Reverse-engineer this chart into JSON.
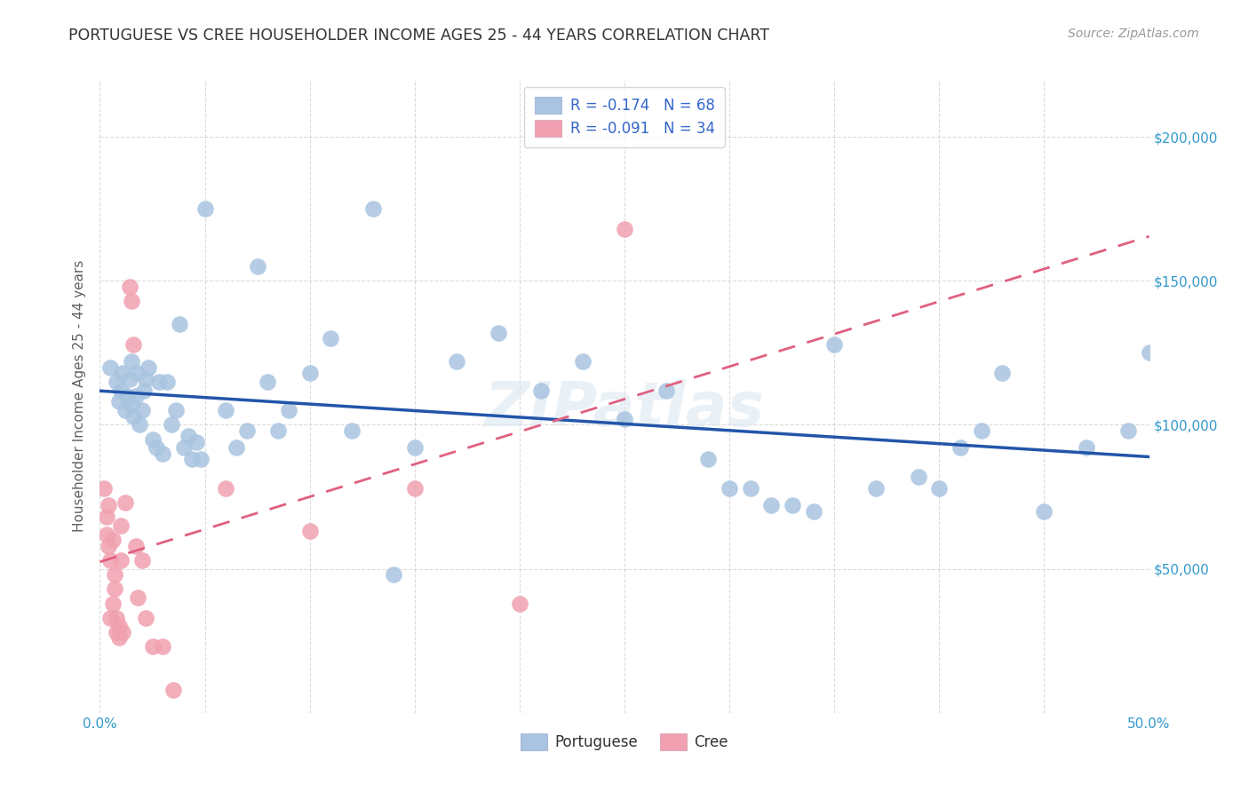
{
  "title": "PORTUGUESE VS CREE HOUSEHOLDER INCOME AGES 25 - 44 YEARS CORRELATION CHART",
  "source": "Source: ZipAtlas.com",
  "ylabel": "Householder Income Ages 25 - 44 years",
  "xlim": [
    0.0,
    0.5
  ],
  "ylim": [
    0,
    220000
  ],
  "yticks": [
    0,
    50000,
    100000,
    150000,
    200000
  ],
  "ytick_labels": [
    "",
    "$50,000",
    "$100,000",
    "$150,000",
    "$200,000"
  ],
  "xticks": [
    0.0,
    0.05,
    0.1,
    0.15,
    0.2,
    0.25,
    0.3,
    0.35,
    0.4,
    0.45,
    0.5
  ],
  "xtick_labels": [
    "0.0%",
    "",
    "",
    "",
    "",
    "",
    "",
    "",
    "",
    "",
    "50.0%"
  ],
  "legend_R_portuguese": "-0.174",
  "legend_N_portuguese": "68",
  "legend_R_cree": "-0.091",
  "legend_N_cree": "34",
  "color_portuguese": "#a8c4e0",
  "color_cree": "#f0a0b0",
  "line_color_portuguese": "#2255aa",
  "line_color_cree": "#e06080",
  "watermark": "ZIPatlas",
  "portuguese_x": [
    0.005,
    0.008,
    0.009,
    0.01,
    0.011,
    0.012,
    0.013,
    0.014,
    0.015,
    0.015,
    0.016,
    0.017,
    0.018,
    0.019,
    0.02,
    0.021,
    0.022,
    0.023,
    0.025,
    0.027,
    0.028,
    0.03,
    0.032,
    0.034,
    0.036,
    0.038,
    0.04,
    0.042,
    0.044,
    0.046,
    0.048,
    0.05,
    0.06,
    0.065,
    0.07,
    0.075,
    0.08,
    0.085,
    0.09,
    0.1,
    0.11,
    0.12,
    0.13,
    0.14,
    0.15,
    0.17,
    0.19,
    0.21,
    0.23,
    0.25,
    0.27,
    0.29,
    0.3,
    0.31,
    0.32,
    0.33,
    0.34,
    0.35,
    0.37,
    0.39,
    0.4,
    0.41,
    0.42,
    0.43,
    0.45,
    0.47,
    0.49,
    0.5
  ],
  "portuguese_y": [
    120000,
    115000,
    108000,
    112000,
    118000,
    105000,
    110000,
    116000,
    107000,
    122000,
    103000,
    110000,
    118000,
    100000,
    105000,
    112000,
    116000,
    120000,
    95000,
    92000,
    115000,
    90000,
    115000,
    100000,
    105000,
    135000,
    92000,
    96000,
    88000,
    94000,
    88000,
    175000,
    105000,
    92000,
    98000,
    155000,
    115000,
    98000,
    105000,
    118000,
    130000,
    98000,
    175000,
    48000,
    92000,
    122000,
    132000,
    112000,
    122000,
    102000,
    112000,
    88000,
    78000,
    78000,
    72000,
    72000,
    70000,
    128000,
    78000,
    82000,
    78000,
    92000,
    98000,
    118000,
    70000,
    92000,
    98000,
    125000
  ],
  "cree_x": [
    0.002,
    0.003,
    0.003,
    0.004,
    0.004,
    0.005,
    0.005,
    0.006,
    0.006,
    0.007,
    0.007,
    0.008,
    0.008,
    0.009,
    0.009,
    0.01,
    0.01,
    0.011,
    0.012,
    0.014,
    0.015,
    0.016,
    0.017,
    0.018,
    0.02,
    0.022,
    0.025,
    0.03,
    0.035,
    0.06,
    0.1,
    0.15,
    0.2,
    0.25
  ],
  "cree_y": [
    78000,
    68000,
    62000,
    58000,
    72000,
    53000,
    33000,
    60000,
    38000,
    43000,
    48000,
    28000,
    33000,
    26000,
    30000,
    53000,
    65000,
    28000,
    73000,
    148000,
    143000,
    128000,
    58000,
    40000,
    53000,
    33000,
    23000,
    23000,
    8000,
    78000,
    63000,
    78000,
    38000,
    168000
  ]
}
